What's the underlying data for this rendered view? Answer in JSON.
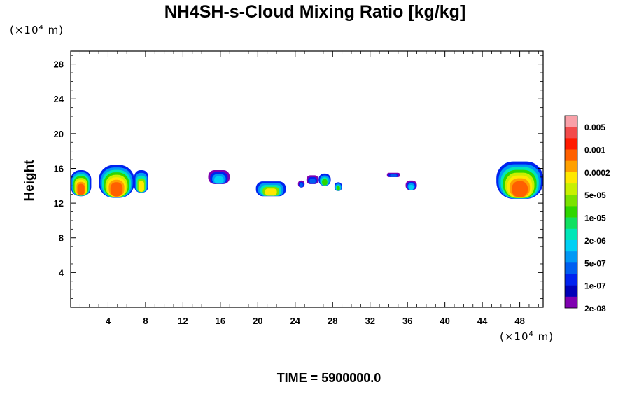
{
  "title": "NH4SH-s-Cloud Mixing Ratio [kg/kg]",
  "y_unit": {
    "prefix": "(×10",
    "exp": "4",
    "suffix": " m)"
  },
  "x_unit": {
    "prefix": "(×10",
    "exp": "4",
    "suffix": " m)"
  },
  "time_label": "TIME = 5900000.0",
  "chart_data": {
    "type": "heatmap",
    "title": "NH4SH-s-Cloud Mixing Ratio [kg/kg]",
    "xlabel": "",
    "ylabel": "Height",
    "xlim": [
      0,
      50.5
    ],
    "ylim": [
      0,
      29.5
    ],
    "x_ticks": [
      4,
      8,
      12,
      16,
      20,
      24,
      28,
      32,
      36,
      40,
      44,
      48
    ],
    "y_ticks": [
      4,
      8,
      12,
      16,
      20,
      24,
      28
    ],
    "colorbar": {
      "labels": [
        "0.005",
        "0.001",
        "0.0002",
        "5e-05",
        "1e-05",
        "2e-06",
        "5e-07",
        "1e-07",
        "2e-08"
      ],
      "colors": [
        "#f9a0a8",
        "#f24b4b",
        "#ff1a00",
        "#ff6000",
        "#ffa000",
        "#ffe800",
        "#c8f000",
        "#7ae200",
        "#2ed600",
        "#10e060",
        "#00e6b8",
        "#00d0f5",
        "#0098f5",
        "#005ef0",
        "#0022ef",
        "#0000b8",
        "#7f00b0"
      ]
    },
    "cloud_blobs": [
      {
        "x": [
          0,
          2.2
        ],
        "y": [
          12.8,
          15.8
        ],
        "peak": "orange"
      },
      {
        "x": [
          3.0,
          6.8
        ],
        "y": [
          12.6,
          16.4
        ],
        "peak": "orange"
      },
      {
        "x": [
          6.8,
          8.3
        ],
        "y": [
          13.2,
          15.8
        ],
        "peak": "yellow"
      },
      {
        "x": [
          14.7,
          17.0
        ],
        "y": [
          14.2,
          15.8
        ],
        "peak": "cyan"
      },
      {
        "x": [
          19.8,
          23.0
        ],
        "y": [
          12.8,
          14.5
        ],
        "peak": "yellow"
      },
      {
        "x": [
          24.3,
          25.0
        ],
        "y": [
          13.8,
          14.6
        ],
        "peak": "blue"
      },
      {
        "x": [
          25.2,
          26.5
        ],
        "y": [
          14.2,
          15.2
        ],
        "peak": "blue"
      },
      {
        "x": [
          26.5,
          27.8
        ],
        "y": [
          14.0,
          15.4
        ],
        "peak": "green"
      },
      {
        "x": [
          28.2,
          29.0
        ],
        "y": [
          13.4,
          14.4
        ],
        "peak": "green"
      },
      {
        "x": [
          33.8,
          35.2
        ],
        "y": [
          15.0,
          15.5
        ],
        "peak": "blue"
      },
      {
        "x": [
          35.8,
          37.0
        ],
        "y": [
          13.5,
          14.6
        ],
        "peak": "cyan"
      },
      {
        "x": [
          45.5,
          50.5
        ],
        "y": [
          12.5,
          16.8
        ],
        "peak": "orange"
      }
    ]
  }
}
